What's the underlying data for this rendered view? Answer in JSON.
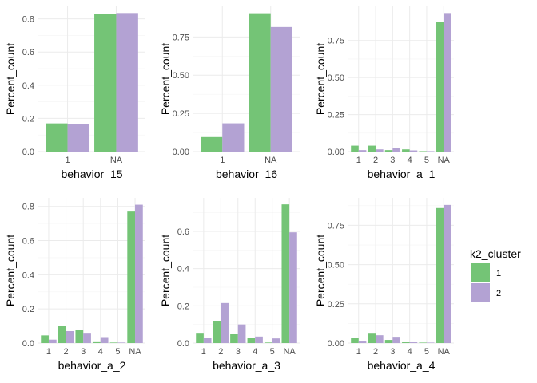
{
  "colors": {
    "cluster1": "#74C476",
    "cluster2": "#B3A2D3",
    "grid_major": "#EBEBEB",
    "grid_minor": "#F5F5F5"
  },
  "legend": {
    "title": "k2_cluster",
    "items": [
      {
        "label": "1",
        "color": "#74C476"
      },
      {
        "label": "2",
        "color": "#B3A2D3"
      }
    ]
  },
  "chart_data": [
    {
      "type": "bar",
      "xlabel": "behavior_15",
      "ylabel": "Percent_count",
      "categories": [
        "1",
        "NA"
      ],
      "series": [
        {
          "name": "1",
          "values": [
            0.17,
            0.83
          ]
        },
        {
          "name": "2",
          "values": [
            0.165,
            0.835
          ]
        }
      ],
      "ylim": [
        0,
        0.875
      ],
      "yticks": [
        0,
        0.2,
        0.4,
        0.6,
        0.8
      ],
      "ytick_labels": [
        "0.0",
        "0.2",
        "0.4",
        "0.6",
        "0.8"
      ]
    },
    {
      "type": "bar",
      "xlabel": "behavior_16",
      "ylabel": "Percent_count",
      "categories": [
        "1",
        "NA"
      ],
      "series": [
        {
          "name": "1",
          "values": [
            0.095,
            0.905
          ]
        },
        {
          "name": "2",
          "values": [
            0.185,
            0.815
          ]
        }
      ],
      "ylim": [
        0,
        0.95
      ],
      "yticks": [
        0,
        0.25,
        0.5,
        0.75
      ],
      "ytick_labels": [
        "0.00",
        "0.25",
        "0.50",
        "0.75"
      ]
    },
    {
      "type": "bar",
      "xlabel": "behavior_a_1",
      "ylabel": "Percent_count",
      "categories": [
        "1",
        "2",
        "3",
        "4",
        "5",
        "NA"
      ],
      "series": [
        {
          "name": "1",
          "values": [
            0.04,
            0.04,
            0.01,
            0.015,
            0.003,
            0.875
          ]
        },
        {
          "name": "2",
          "values": [
            0.01,
            0.015,
            0.025,
            0.008,
            0.003,
            0.935
          ]
        }
      ],
      "ylim": [
        0,
        0.98
      ],
      "yticks": [
        0,
        0.25,
        0.5,
        0.75
      ],
      "ytick_labels": [
        "0.00",
        "0.25",
        "0.50",
        "0.75"
      ]
    },
    {
      "type": "bar",
      "xlabel": "behavior_a_2",
      "ylabel": "Percent_count",
      "categories": [
        "1",
        "2",
        "3",
        "4",
        "5",
        "NA"
      ],
      "series": [
        {
          "name": "1",
          "values": [
            0.045,
            0.1,
            0.075,
            0.01,
            0.003,
            0.77
          ]
        },
        {
          "name": "2",
          "values": [
            0.02,
            0.07,
            0.06,
            0.035,
            0.003,
            0.81
          ]
        }
      ],
      "ylim": [
        0,
        0.85
      ],
      "yticks": [
        0,
        0.2,
        0.4,
        0.6,
        0.8
      ],
      "ytick_labels": [
        "0.0",
        "0.2",
        "0.4",
        "0.6",
        "0.8"
      ]
    },
    {
      "type": "bar",
      "xlabel": "behavior_a_3",
      "ylabel": "Percent_count",
      "categories": [
        "1",
        "2",
        "3",
        "4",
        "5",
        "NA"
      ],
      "series": [
        {
          "name": "1",
          "values": [
            0.055,
            0.12,
            0.05,
            0.028,
            0.003,
            0.745
          ]
        },
        {
          "name": "2",
          "values": [
            0.03,
            0.215,
            0.1,
            0.035,
            0.025,
            0.595
          ]
        }
      ],
      "ylim": [
        0,
        0.78
      ],
      "yticks": [
        0,
        0.2,
        0.4,
        0.6
      ],
      "ytick_labels": [
        "0.0",
        "0.2",
        "0.4",
        "0.6"
      ]
    },
    {
      "type": "bar",
      "xlabel": "behavior_a_4",
      "ylabel": "Percent_count",
      "categories": [
        "1",
        "2",
        "3",
        "4",
        "5",
        "NA"
      ],
      "series": [
        {
          "name": "1",
          "values": [
            0.035,
            0.065,
            0.02,
            0.005,
            0.003,
            0.86
          ]
        },
        {
          "name": "2",
          "values": [
            0.015,
            0.05,
            0.04,
            0.005,
            0.003,
            0.88
          ]
        }
      ],
      "ylim": [
        0,
        0.925
      ],
      "yticks": [
        0,
        0.25,
        0.5,
        0.75
      ],
      "ytick_labels": [
        "0.00",
        "0.25",
        "0.50",
        "0.75"
      ]
    }
  ]
}
